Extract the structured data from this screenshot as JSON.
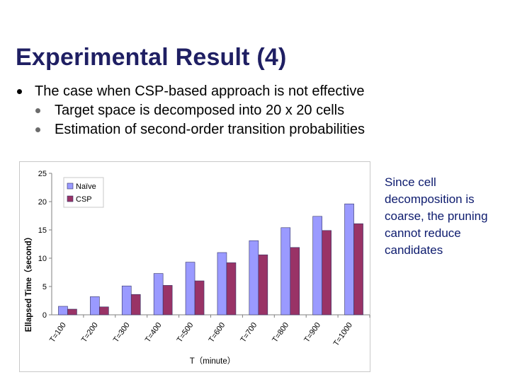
{
  "slide": {
    "title": "Experimental Result (4)",
    "bullets": [
      {
        "text": "The case when CSP-based approach is not effective"
      },
      {
        "text": "Target space is decomposed into 20 x 20 cells"
      },
      {
        "text": "Estimation of second-order transition probabilities"
      }
    ],
    "note": "Since cell decomposition is coarse, the pruning cannot reduce candidates"
  },
  "colors": {
    "title": "#1f1f63",
    "note": "#0d1b6e",
    "naive": "#9a9aff",
    "csp": "#993366"
  },
  "chart_data": {
    "type": "bar",
    "categories": [
      "T=100",
      "T=200",
      "T=300",
      "T=400",
      "T=500",
      "T=600",
      "T=700",
      "T=800",
      "T=900",
      "T=1000"
    ],
    "series": [
      {
        "name": "Naïve",
        "values": [
          1.5,
          3.2,
          5.1,
          7.3,
          9.3,
          11.0,
          13.1,
          15.4,
          17.4,
          19.6
        ]
      },
      {
        "name": "CSP",
        "values": [
          1.0,
          1.4,
          3.6,
          5.2,
          6.0,
          9.2,
          10.6,
          11.9,
          14.9,
          16.1
        ]
      }
    ],
    "xlabel": "T（minute）",
    "ylabel": "Ellapsed Time（second）",
    "ylim": [
      0,
      25
    ],
    "yticks": [
      "0",
      "5",
      "10",
      "15",
      "20",
      "25"
    ],
    "legend_position": "top-left",
    "grid": false
  }
}
